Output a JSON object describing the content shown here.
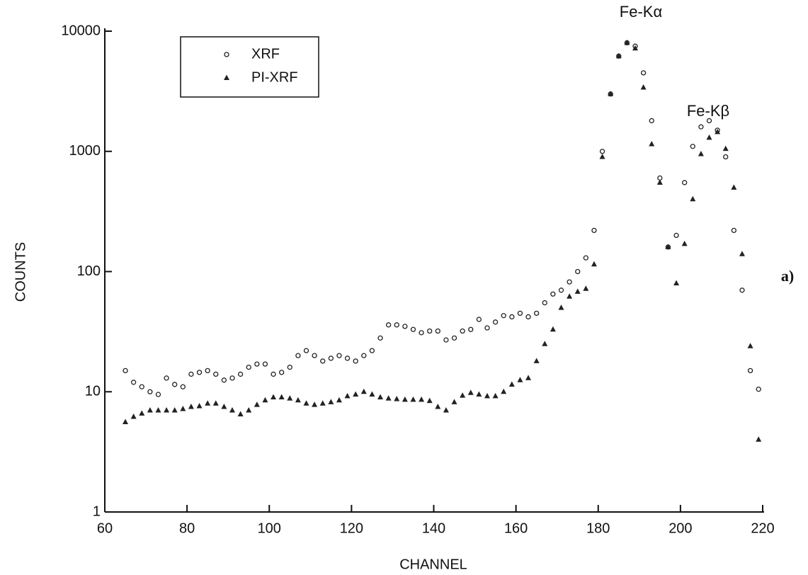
{
  "chart_data": {
    "type": "scatter",
    "ylabel": "COUNTS",
    "xlabel": "CHANNEL",
    "annotation_ka": "Fe-Kα",
    "annotation_kb": "Fe-Kβ",
    "panel_label": "a)",
    "log_y": true,
    "legend": "upper left",
    "xlim": [
      60,
      220
    ],
    "xticks": [
      60,
      80,
      100,
      120,
      140,
      160,
      180,
      200,
      220
    ],
    "ylim": [
      1,
      10000
    ],
    "yticks": [
      1,
      10,
      100,
      1000,
      10000
    ],
    "x": [
      65,
      67,
      69,
      71,
      73,
      75,
      77,
      79,
      81,
      83,
      85,
      87,
      89,
      91,
      93,
      95,
      97,
      99,
      101,
      103,
      105,
      107,
      109,
      111,
      113,
      115,
      117,
      119,
      121,
      123,
      125,
      127,
      129,
      131,
      133,
      135,
      137,
      139,
      141,
      143,
      145,
      147,
      149,
      151,
      153,
      155,
      157,
      159,
      161,
      163,
      165,
      167,
      169,
      171,
      173,
      175,
      177,
      179,
      181,
      183,
      185,
      187,
      189,
      191,
      193,
      195,
      197,
      199,
      201,
      203,
      205,
      207,
      209,
      211,
      213,
      215,
      217,
      219
    ],
    "series": [
      {
        "name": "XRF",
        "marker": "circle",
        "color": "#222",
        "values": [
          15,
          12,
          11,
          10,
          9.5,
          13,
          11.5,
          11,
          14,
          14.5,
          15,
          14,
          12.5,
          13,
          14,
          16,
          17,
          17,
          14,
          14.5,
          16,
          20,
          22,
          20,
          18,
          19,
          20,
          19,
          18,
          20,
          22,
          28,
          36,
          36,
          35,
          33,
          31,
          32,
          32,
          27,
          28,
          32,
          33,
          40,
          34,
          38,
          43,
          42,
          45,
          42,
          45,
          55,
          65,
          70,
          82,
          100,
          130,
          220,
          1000,
          3000,
          6200,
          8000,
          7500,
          4500,
          1800,
          600,
          160,
          200,
          550,
          1100,
          1600,
          1800,
          1500,
          900,
          220,
          70,
          15,
          10.5
        ]
      },
      {
        "name": "PI-XRF",
        "marker": "triangle",
        "color": "#222",
        "values": [
          5.6,
          6.2,
          6.6,
          7,
          7,
          7,
          7,
          7.2,
          7.5,
          7.6,
          8,
          8,
          7.5,
          7,
          6.5,
          7,
          7.8,
          8.5,
          9,
          9,
          8.8,
          8.5,
          8,
          7.8,
          8,
          8.2,
          8.5,
          9.2,
          9.5,
          10,
          9.5,
          9,
          8.8,
          8.7,
          8.6,
          8.6,
          8.6,
          8.4,
          7.5,
          7,
          8.2,
          9.3,
          9.8,
          9.5,
          9.2,
          9.2,
          10,
          11.5,
          12.5,
          13,
          18,
          25,
          33,
          50,
          62,
          68,
          72,
          115,
          900,
          3000,
          6200,
          8000,
          7200,
          3400,
          1150,
          550,
          160,
          80,
          170,
          400,
          950,
          1300,
          1450,
          1050,
          500,
          140,
          24,
          4
        ]
      }
    ]
  }
}
